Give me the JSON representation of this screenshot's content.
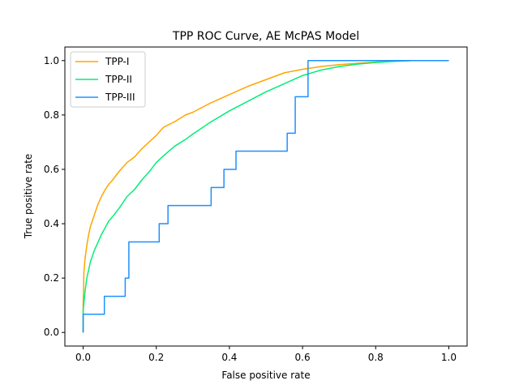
{
  "chart_data": {
    "type": "line",
    "title": "TPP ROC Curve, AE McPAS Model",
    "xlabel": "False positive rate",
    "ylabel": "True positive rate",
    "xlim": [
      -0.05,
      1.05
    ],
    "ylim": [
      -0.05,
      1.05
    ],
    "xticks": [
      "0.0",
      "0.2",
      "0.4",
      "0.6",
      "0.8",
      "1.0"
    ],
    "yticks": [
      "0.0",
      "0.2",
      "0.4",
      "0.6",
      "0.8",
      "1.0"
    ],
    "grid": false,
    "legend_position": "top-left",
    "series": [
      {
        "name": "TPP-I",
        "color": "#ffa500",
        "step": false,
        "x": [
          0.0,
          0.0,
          0.002,
          0.005,
          0.01,
          0.015,
          0.02,
          0.03,
          0.04,
          0.05,
          0.06,
          0.07,
          0.08,
          0.1,
          0.12,
          0.14,
          0.16,
          0.18,
          0.2,
          0.22,
          0.25,
          0.28,
          0.3,
          0.35,
          0.4,
          0.45,
          0.5,
          0.55,
          0.6,
          0.65,
          0.7,
          0.75,
          0.8,
          0.85,
          0.9,
          0.95,
          1.0
        ],
        "y": [
          0.0,
          0.1,
          0.22,
          0.27,
          0.32,
          0.36,
          0.39,
          0.43,
          0.47,
          0.5,
          0.525,
          0.545,
          0.56,
          0.595,
          0.625,
          0.645,
          0.675,
          0.7,
          0.725,
          0.755,
          0.775,
          0.8,
          0.81,
          0.845,
          0.875,
          0.905,
          0.93,
          0.955,
          0.968,
          0.978,
          0.985,
          0.99,
          0.995,
          0.998,
          1.0,
          1.0,
          1.0
        ]
      },
      {
        "name": "TPP-II",
        "color": "#00ee76",
        "step": false,
        "x": [
          0.0,
          0.0,
          0.005,
          0.01,
          0.02,
          0.03,
          0.04,
          0.05,
          0.06,
          0.07,
          0.08,
          0.1,
          0.12,
          0.14,
          0.16,
          0.18,
          0.2,
          0.22,
          0.25,
          0.28,
          0.3,
          0.35,
          0.4,
          0.45,
          0.5,
          0.55,
          0.6,
          0.65,
          0.7,
          0.75,
          0.8,
          0.85,
          0.9,
          0.95,
          1.0
        ],
        "y": [
          0.0,
          0.08,
          0.15,
          0.2,
          0.26,
          0.3,
          0.33,
          0.36,
          0.385,
          0.41,
          0.425,
          0.46,
          0.5,
          0.525,
          0.56,
          0.59,
          0.625,
          0.65,
          0.685,
          0.71,
          0.73,
          0.775,
          0.815,
          0.85,
          0.885,
          0.915,
          0.945,
          0.965,
          0.978,
          0.987,
          0.993,
          0.997,
          1.0,
          1.0,
          1.0
        ]
      },
      {
        "name": "TPP-III",
        "color": "#1e90ff",
        "step": true,
        "x": [
          0.0,
          0.0,
          0.058,
          0.058,
          0.115,
          0.115,
          0.125,
          0.125,
          0.208,
          0.208,
          0.232,
          0.232,
          0.35,
          0.35,
          0.385,
          0.385,
          0.418,
          0.418,
          0.558,
          0.558,
          0.58,
          0.58,
          0.615,
          0.615,
          1.0
        ],
        "y": [
          0.0,
          0.067,
          0.067,
          0.133,
          0.133,
          0.2,
          0.2,
          0.333,
          0.333,
          0.4,
          0.4,
          0.467,
          0.467,
          0.533,
          0.533,
          0.6,
          0.6,
          0.667,
          0.667,
          0.733,
          0.733,
          0.867,
          0.867,
          1.0,
          1.0
        ]
      }
    ]
  }
}
